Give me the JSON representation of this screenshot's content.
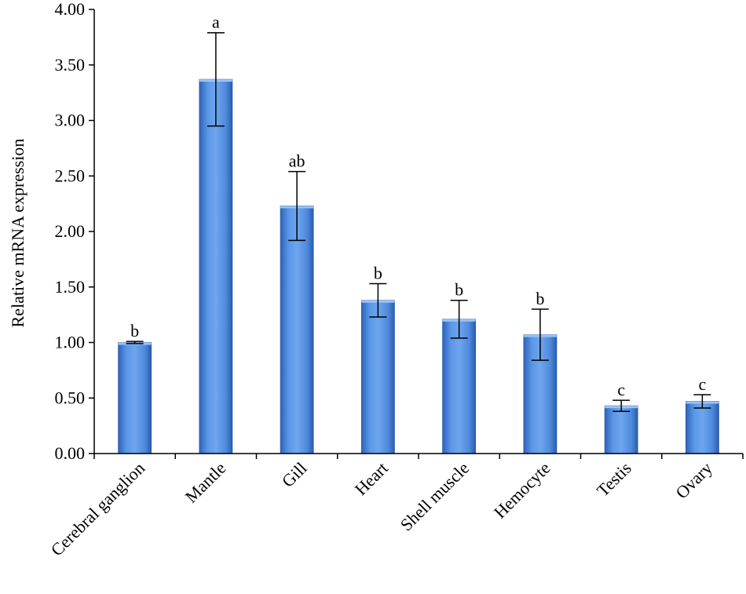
{
  "chart_data": {
    "type": "bar",
    "ylabel": "Relative mRNA expression",
    "xlabel": "",
    "ylim": [
      0,
      4
    ],
    "yticks": [
      "0.00",
      "0.50",
      "1.00",
      "1.50",
      "2.00",
      "2.50",
      "3.00",
      "3.50",
      "4.00"
    ],
    "categories": [
      "Cerebral ganglion",
      "Mantle",
      "Gill",
      "Heart",
      "Shell muscle",
      "Hemocyte",
      "Testis",
      "Ovary"
    ],
    "values": [
      1.0,
      3.37,
      2.23,
      1.38,
      1.21,
      1.07,
      0.43,
      0.47
    ],
    "errors": [
      0.01,
      0.42,
      0.31,
      0.15,
      0.17,
      0.23,
      0.05,
      0.06
    ],
    "significance": [
      "b",
      "a",
      "ab",
      "b",
      "b",
      "b",
      "c",
      "c"
    ],
    "bar_color": "#4a86d9",
    "grid": false,
    "legend": "none"
  }
}
